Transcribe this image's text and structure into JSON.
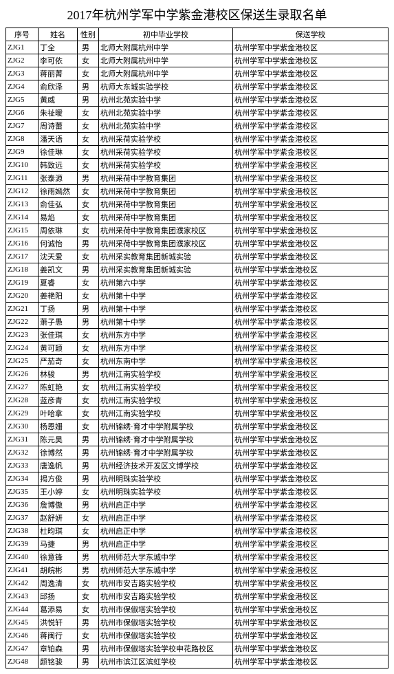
{
  "title": "2017年杭州学军中学紫金港校区保送生录取名单",
  "headers": {
    "id": "序号",
    "name": "姓名",
    "gender": "性别",
    "school": "初中毕业学校",
    "dest": "保送学校"
  },
  "dest_school": "杭州学军中学紫金港校区",
  "rows": [
    {
      "id": "ZJG1",
      "name": "丁全",
      "gender": "男",
      "school": "北师大附属杭州中学"
    },
    {
      "id": "ZJG2",
      "name": "李可依",
      "gender": "女",
      "school": "北师大附属杭州中学"
    },
    {
      "id": "ZJG3",
      "name": "蒋丽菁",
      "gender": "女",
      "school": "北师大附属杭州中学"
    },
    {
      "id": "ZJG4",
      "name": "俞欣泽",
      "gender": "男",
      "school": "杭师大东城实验学校"
    },
    {
      "id": "ZJG5",
      "name": "黄威",
      "gender": "男",
      "school": "杭州北苑实验中学"
    },
    {
      "id": "ZJG6",
      "name": "朱祉暧",
      "gender": "女",
      "school": "杭州北苑实验中学"
    },
    {
      "id": "ZJG7",
      "name": "周诗蕾",
      "gender": "女",
      "school": "杭州北苑实验中学"
    },
    {
      "id": "ZJG8",
      "name": "潘天语",
      "gender": "女",
      "school": "杭州采荷实验学校"
    },
    {
      "id": "ZJG9",
      "name": "徐佳琳",
      "gender": "女",
      "school": "杭州采荷实验学校"
    },
    {
      "id": "ZJG10",
      "name": "韩致远",
      "gender": "女",
      "school": "杭州采荷实验学校"
    },
    {
      "id": "ZJG11",
      "name": "张泰源",
      "gender": "男",
      "school": "杭州采荷中学教育集团"
    },
    {
      "id": "ZJG12",
      "name": "徐雨嫣然",
      "gender": "女",
      "school": "杭州采荷中学教育集团"
    },
    {
      "id": "ZJG13",
      "name": "俞佳弘",
      "gender": "女",
      "school": "杭州采荷中学教育集团"
    },
    {
      "id": "ZJG14",
      "name": "易焰",
      "gender": "女",
      "school": "杭州采荷中学教育集团"
    },
    {
      "id": "ZJG15",
      "name": "周依琳",
      "gender": "女",
      "school": "杭州采荷中学教育集团濮家校区"
    },
    {
      "id": "ZJG16",
      "name": "何诚怡",
      "gender": "男",
      "school": "杭州采荷中学教育集团濮家校区"
    },
    {
      "id": "ZJG17",
      "name": "沈天爱",
      "gender": "女",
      "school": "杭州采实教育集团新城实验"
    },
    {
      "id": "ZJG18",
      "name": "姜凯文",
      "gender": "男",
      "school": "杭州采实教育集团新城实验"
    },
    {
      "id": "ZJG19",
      "name": "夏睿",
      "gender": "女",
      "school": "杭州第六中学"
    },
    {
      "id": "ZJG20",
      "name": "姜艳阳",
      "gender": "女",
      "school": "杭州第十中学"
    },
    {
      "id": "ZJG21",
      "name": "丁扬",
      "gender": "男",
      "school": "杭州第十中学"
    },
    {
      "id": "ZJG22",
      "name": "萧子愚",
      "gender": "男",
      "school": "杭州第十中学"
    },
    {
      "id": "ZJG23",
      "name": "张佳琪",
      "gender": "女",
      "school": "杭州东方中学"
    },
    {
      "id": "ZJG24",
      "name": "黄可颖",
      "gender": "女",
      "school": "杭州东方中学"
    },
    {
      "id": "ZJG25",
      "name": "严茄奇",
      "gender": "女",
      "school": "杭州东南中学"
    },
    {
      "id": "ZJG26",
      "name": "林骏",
      "gender": "男",
      "school": "杭州江南实验学校"
    },
    {
      "id": "ZJG27",
      "name": "陈虹艳",
      "gender": "女",
      "school": "杭州江南实验学校"
    },
    {
      "id": "ZJG28",
      "name": "蓝彦青",
      "gender": "女",
      "school": "杭州江南实验学校"
    },
    {
      "id": "ZJG29",
      "name": "叶哈拿",
      "gender": "女",
      "school": "杭州江南实验学校"
    },
    {
      "id": "ZJG30",
      "name": "杨恩姗",
      "gender": "女",
      "school": "杭州锦绣·育才中学附属学校"
    },
    {
      "id": "ZJG31",
      "name": "陈元昊",
      "gender": "男",
      "school": "杭州锦绣·育才中学附属学校"
    },
    {
      "id": "ZJG32",
      "name": "徐博然",
      "gender": "男",
      "school": "杭州锦绣·育才中学附属学校"
    },
    {
      "id": "ZJG33",
      "name": "唐逸帆",
      "gender": "男",
      "school": "杭州经济技术开发区文博学校"
    },
    {
      "id": "ZJG34",
      "name": "揭方俊",
      "gender": "男",
      "school": "杭州明珠实验学校"
    },
    {
      "id": "ZJG35",
      "name": "王小婷",
      "gender": "女",
      "school": "杭州明珠实验学校"
    },
    {
      "id": "ZJG36",
      "name": "詹博傲",
      "gender": "男",
      "school": "杭州启正中学"
    },
    {
      "id": "ZJG37",
      "name": "赵舒妍",
      "gender": "女",
      "school": "杭州启正中学"
    },
    {
      "id": "ZJG38",
      "name": "杜昀琪",
      "gender": "女",
      "school": "杭州启正中学"
    },
    {
      "id": "ZJG39",
      "name": "马捷",
      "gender": "男",
      "school": "杭州启正中学"
    },
    {
      "id": "ZJG40",
      "name": "徐意锋",
      "gender": "男",
      "school": "杭州师范大学东城中学"
    },
    {
      "id": "ZJG41",
      "name": "胡皖彬",
      "gender": "男",
      "school": "杭州师范大学东城中学"
    },
    {
      "id": "ZJG42",
      "name": "周逸清",
      "gender": "女",
      "school": "杭州市安吉路实验学校"
    },
    {
      "id": "ZJG43",
      "name": "邱扬",
      "gender": "女",
      "school": "杭州市安吉路实验学校"
    },
    {
      "id": "ZJG44",
      "name": "葛添易",
      "gender": "女",
      "school": "杭州市保俶塔实验学校"
    },
    {
      "id": "ZJG45",
      "name": "洪悦轩",
      "gender": "男",
      "school": "杭州市保俶塔实验学校"
    },
    {
      "id": "ZJG46",
      "name": "蒋闽行",
      "gender": "女",
      "school": "杭州市保俶塔实验学校"
    },
    {
      "id": "ZJG47",
      "name": "章铂森",
      "gender": "男",
      "school": "杭州市保俶塔实验学校申花路校区"
    },
    {
      "id": "ZJG48",
      "name": "颜铭骏",
      "gender": "男",
      "school": "杭州市滨江区滨虹学校"
    }
  ]
}
